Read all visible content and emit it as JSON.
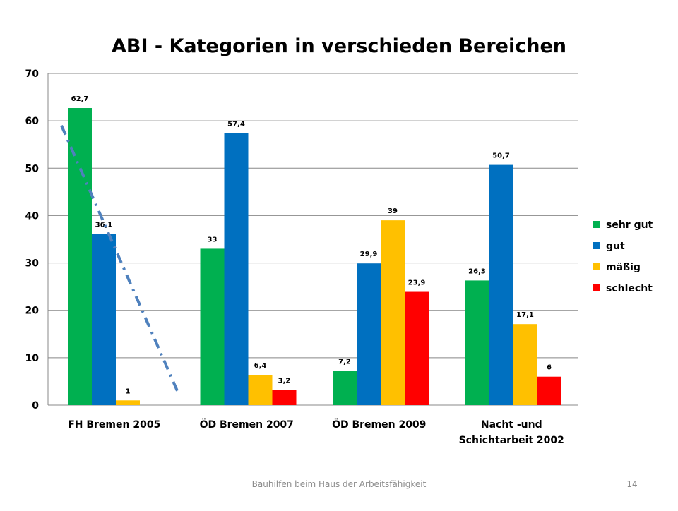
{
  "footer": {
    "text": "Bauhilfen beim Haus der Arbeitsfähigkeit",
    "page_number": "14"
  },
  "chart_data": {
    "type": "bar",
    "title": "ABI - Kategorien in verschieden Bereichen",
    "categories": [
      [
        "FH Bremen 2005"
      ],
      [
        "ÖD Bremen 2007"
      ],
      [
        "ÖD Bremen 2009"
      ],
      [
        "Nacht -und",
        "Schichtarbeit 2002"
      ]
    ],
    "series": [
      {
        "name": "sehr gut",
        "color": "#00b050",
        "values": [
          62.7,
          33,
          7.2,
          26.3
        ],
        "labels": [
          "62,7",
          "33",
          "7,2",
          "26,3"
        ]
      },
      {
        "name": "gut",
        "color": "#0070c0",
        "values": [
          36.1,
          57.4,
          29.9,
          50.7
        ],
        "labels": [
          "36,1",
          "57,4",
          "29,9",
          "50,7"
        ]
      },
      {
        "name": "mäßig",
        "color": "#ffc000",
        "values": [
          1,
          6.4,
          39,
          17.1
        ],
        "labels": [
          "1",
          "6,4",
          "39",
          "17,1"
        ]
      },
      {
        "name": "schlecht",
        "color": "#ff0000",
        "values": [
          null,
          3.2,
          23.9,
          6
        ],
        "labels": [
          "",
          "3,2",
          "23,9",
          "6"
        ]
      }
    ],
    "ylim": [
      0,
      70
    ],
    "yticks": [
      0,
      10,
      20,
      30,
      40,
      50,
      60,
      70
    ],
    "grid": true,
    "legend_position": "right",
    "annotation": {
      "type": "trend-line",
      "style": "dash-dot",
      "color": "#4f81bd",
      "from": {
        "category": "FH Bremen 2005",
        "y": 59
      },
      "to": {
        "category": "FH Bremen 2005",
        "y": 2.5
      }
    }
  }
}
